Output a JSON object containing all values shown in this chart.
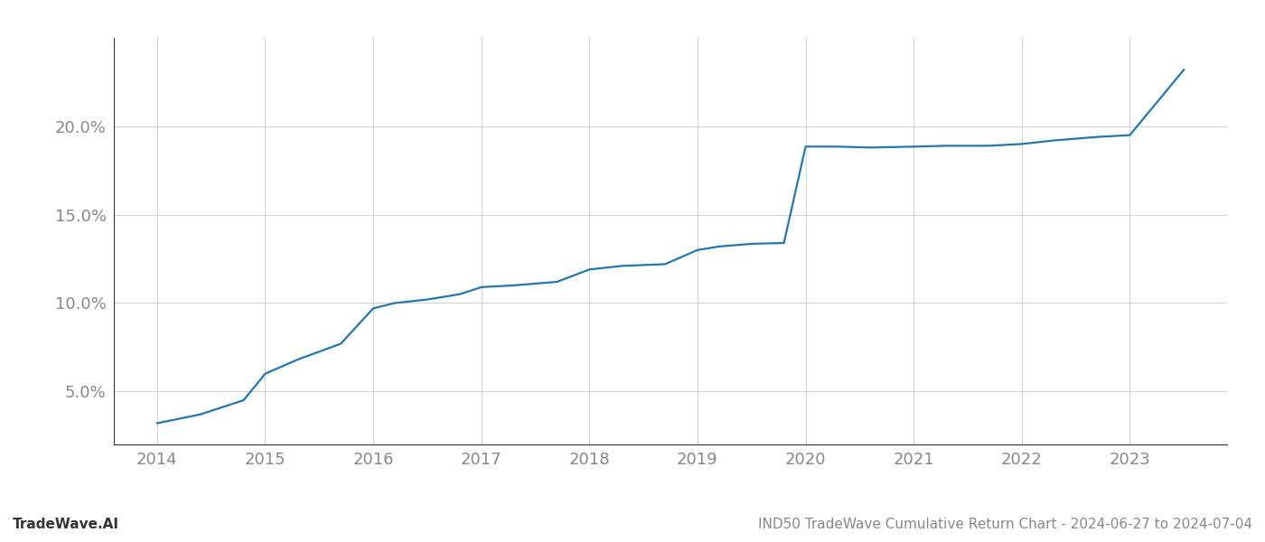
{
  "x_years": [
    2014,
    2014.4,
    2014.8,
    2015,
    2015.3,
    2015.7,
    2016,
    2016.2,
    2016.5,
    2016.8,
    2017,
    2017.3,
    2017.7,
    2018,
    2018.3,
    2018.7,
    2019,
    2019.2,
    2019.5,
    2019.8,
    2020,
    2020.3,
    2020.6,
    2021,
    2021.3,
    2021.7,
    2022,
    2022.3,
    2022.7,
    2023,
    2023.5
  ],
  "y_values": [
    3.2,
    3.7,
    4.5,
    6.0,
    6.8,
    7.7,
    9.7,
    10.0,
    10.2,
    10.5,
    10.9,
    11.0,
    11.2,
    11.9,
    12.1,
    12.2,
    13.0,
    13.2,
    13.35,
    13.4,
    18.85,
    18.85,
    18.8,
    18.85,
    18.9,
    18.9,
    19.0,
    19.2,
    19.4,
    19.5,
    23.2
  ],
  "line_color": "#2077b4",
  "line_width": 1.6,
  "yticks": [
    5.0,
    10.0,
    15.0,
    20.0
  ],
  "ytick_labels": [
    "5.0%",
    "10.0%",
    "15.0%",
    "20.0%"
  ],
  "xticks": [
    2014,
    2015,
    2016,
    2017,
    2018,
    2019,
    2020,
    2021,
    2022,
    2023
  ],
  "xlim": [
    2013.6,
    2023.9
  ],
  "ylim": [
    2.0,
    25.0
  ],
  "grid_color": "#d0d0d0",
  "grid_linewidth": 0.7,
  "bg_color": "#ffffff",
  "footer_left": "TradeWave.AI",
  "footer_right": "IND50 TradeWave Cumulative Return Chart - 2024-06-27 to 2024-07-04",
  "footer_color": "#888888",
  "footer_fontsize": 11,
  "tick_label_color": "#888888",
  "tick_fontsize": 13,
  "spine_color": "#333333"
}
